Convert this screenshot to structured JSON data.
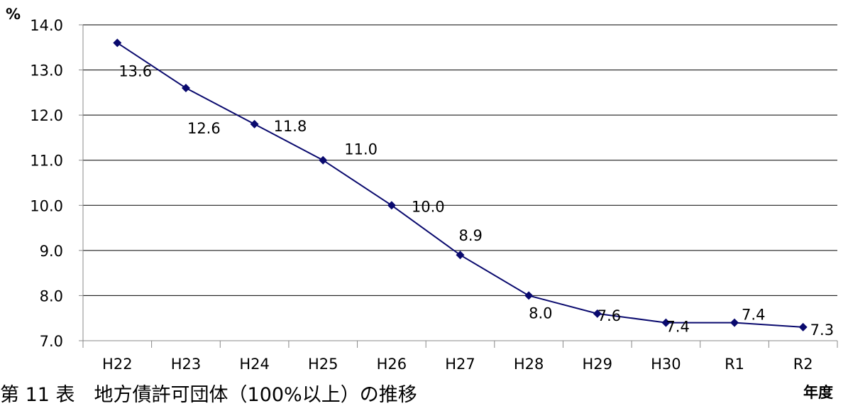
{
  "chart_data": {
    "type": "line",
    "categories": [
      "H22",
      "H23",
      "H24",
      "H25",
      "H26",
      "H27",
      "H28",
      "H29",
      "H30",
      "R1",
      "R2"
    ],
    "series": [
      {
        "values": [
          13.6,
          12.6,
          11.8,
          11.0,
          10.0,
          8.9,
          8.0,
          7.6,
          7.4,
          7.4,
          7.3
        ]
      }
    ],
    "data_labels": [
      "13.6",
      "12.6",
      "11.8",
      "11.0",
      "10.0",
      "8.9",
      "8.0",
      "7.6",
      "7.4",
      "7.4",
      "7.3"
    ],
    "y_ticks": [
      "7.0",
      "8.0",
      "9.0",
      "10.0",
      "11.0",
      "12.0",
      "13.0",
      "14.0"
    ],
    "ylim": [
      7.0,
      14.0
    ],
    "ylabel": "%",
    "xlabel": "年度",
    "grid": true,
    "colors": {
      "series": "#0a0a6e",
      "grid": "#000000"
    }
  },
  "caption": "第 11 表　地方債許可団体（100%以上）の推移"
}
